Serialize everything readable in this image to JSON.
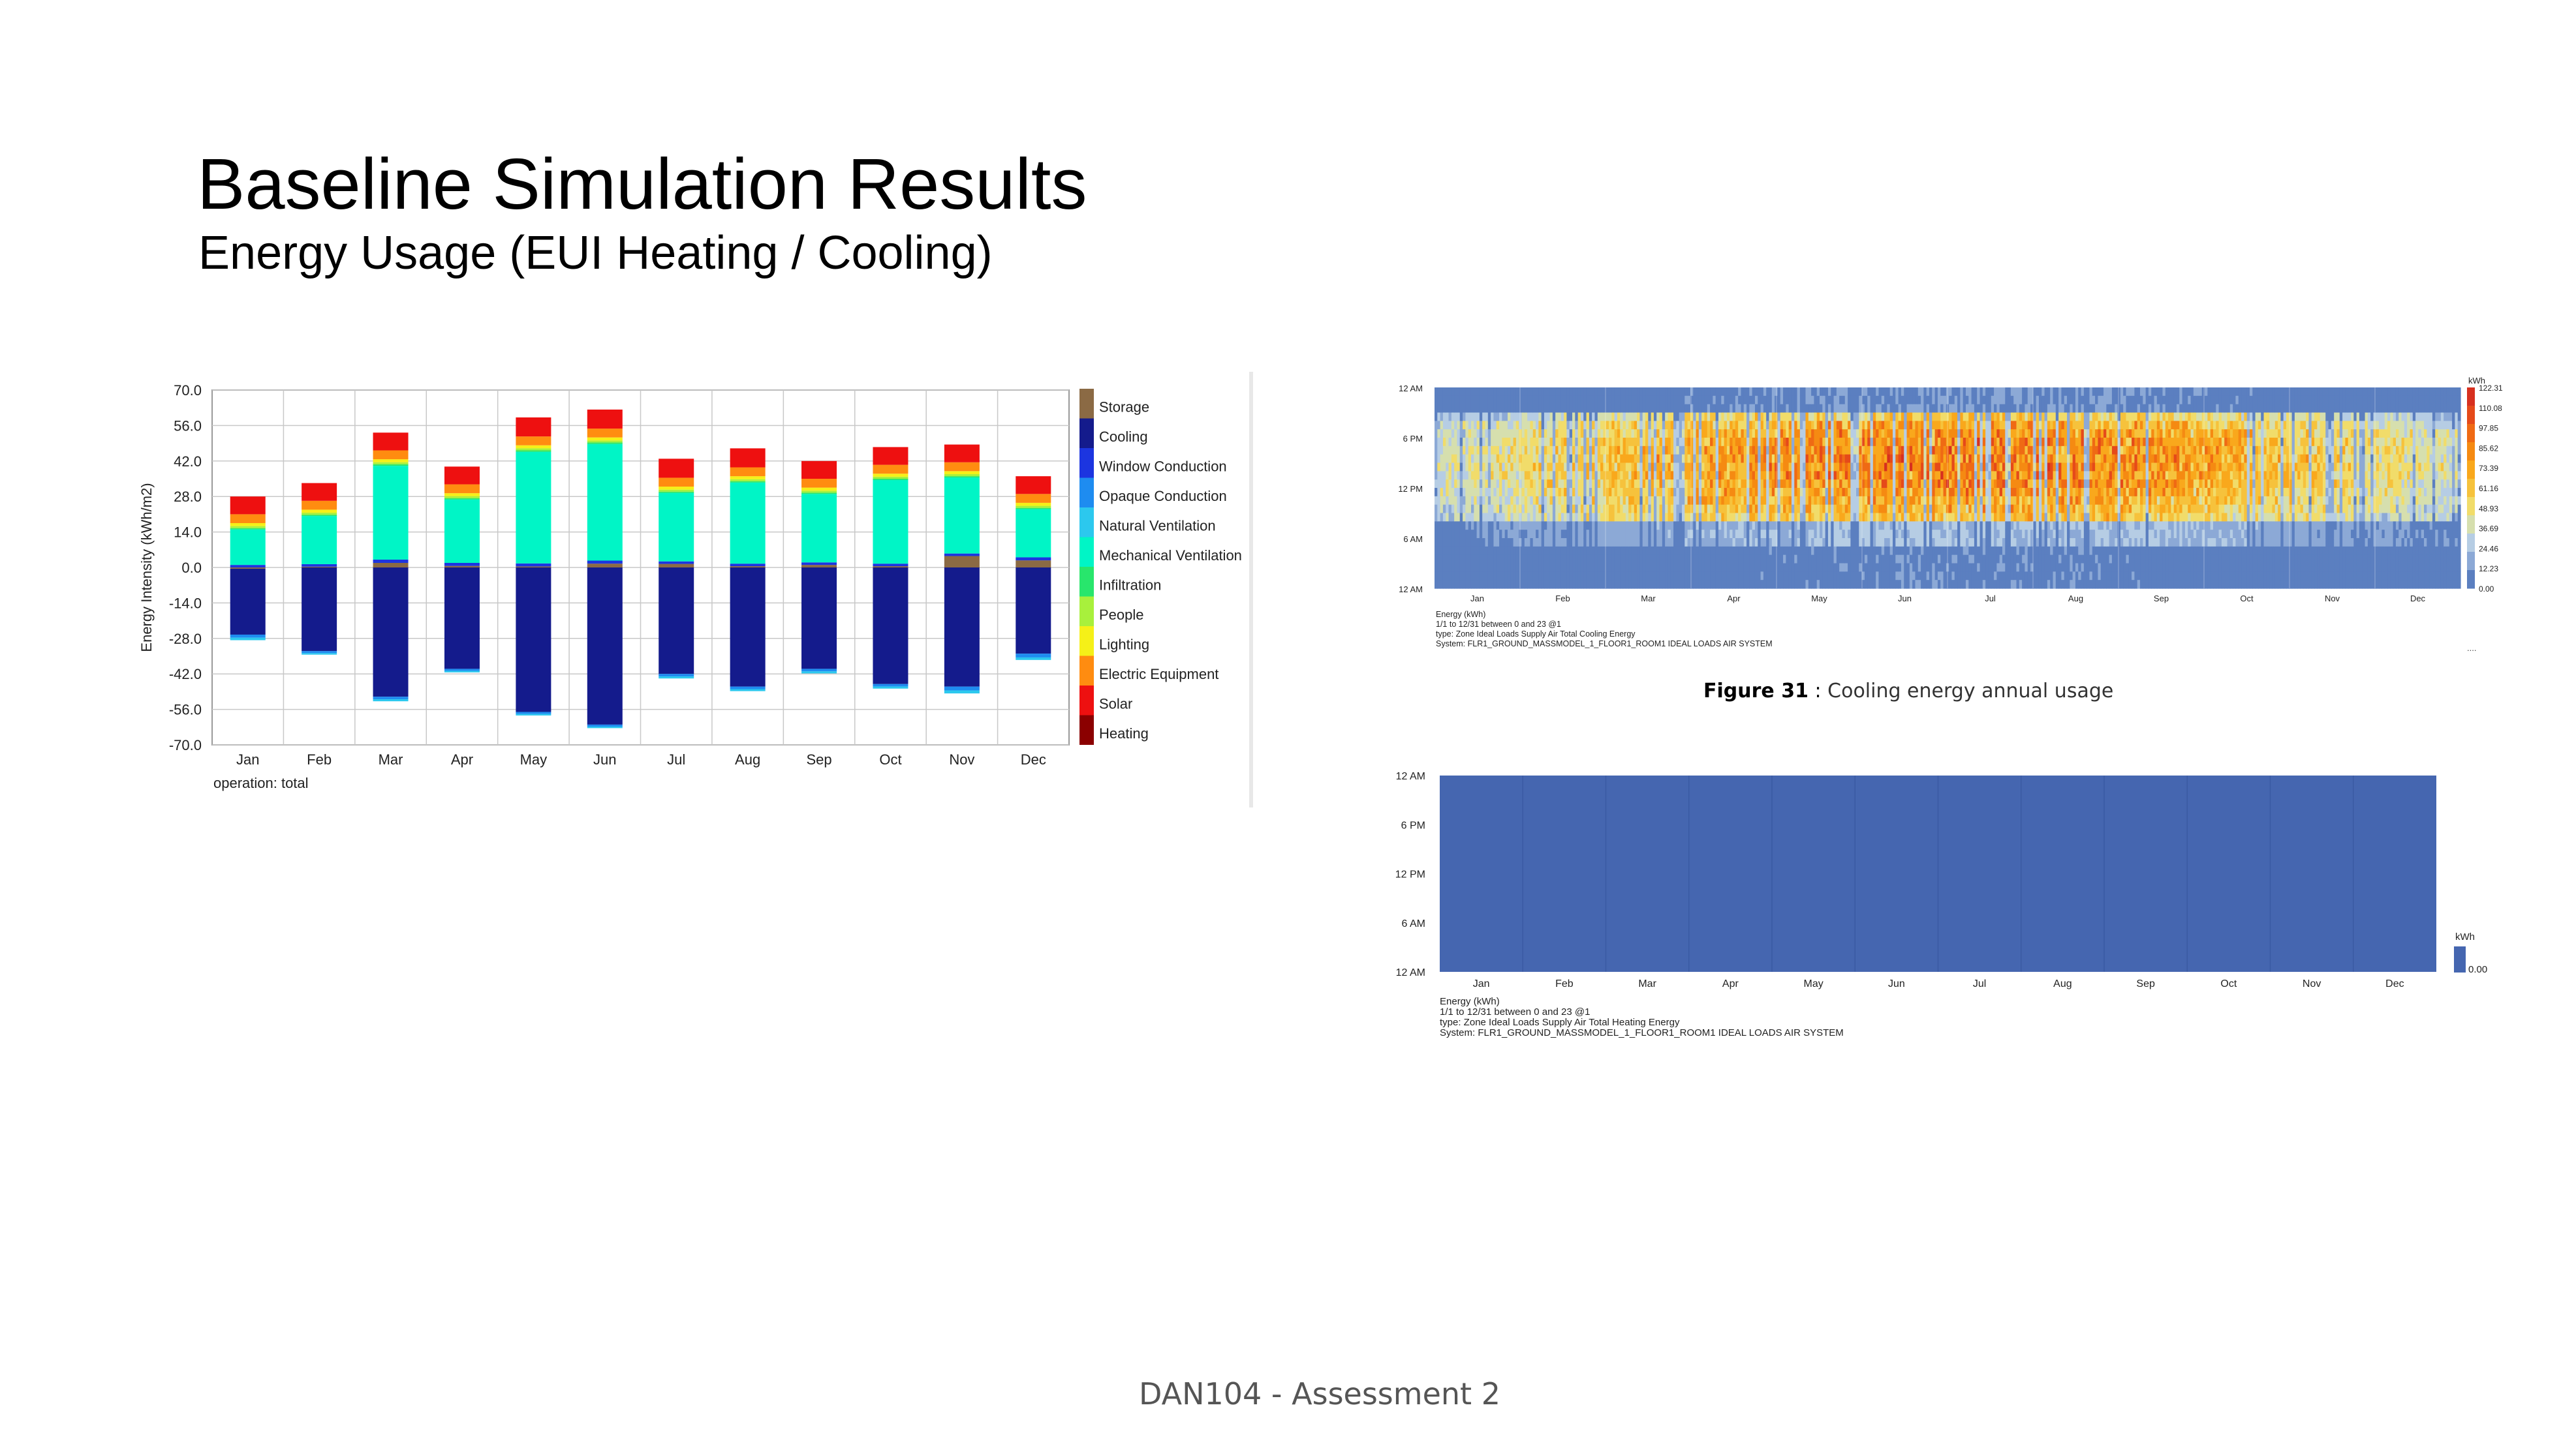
{
  "slide": {
    "title": "Baseline Simulation Results",
    "subtitle": "Energy Usage (EUI Heating / Cooling)",
    "footer": "DAN104 - Assessment 2"
  },
  "figure_caption": {
    "label": "Figure 31",
    "separator": " : ",
    "text": "Cooling energy annual usage"
  },
  "chart_data": [
    {
      "type": "bar",
      "stacked": true,
      "title": "",
      "xlabel": "",
      "ylabel": "Energy Intensity (kWh/m2)",
      "ylim": [
        -70,
        70
      ],
      "yticks": [
        "70.0",
        "56.0",
        "42.0",
        "28.0",
        "14.0",
        "0.0",
        "-14.0",
        "-28.0",
        "-42.0",
        "-56.0",
        "-70.0"
      ],
      "grid": true,
      "legend_position": "right",
      "footnote": "operation: total",
      "categories": [
        "Jan",
        "Feb",
        "Mar",
        "Apr",
        "May",
        "Jun",
        "Jul",
        "Aug",
        "Sep",
        "Oct",
        "Nov",
        "Dec"
      ],
      "series": [
        {
          "name": "Storage",
          "color": "#8b6a44",
          "values": [
            -0.5,
            0.3,
            1.8,
            0.6,
            0.4,
            1.5,
            1.4,
            0.5,
            1.0,
            0.5,
            4.5,
            2.8
          ]
        },
        {
          "name": "Cooling",
          "color": "#141b8c",
          "values": [
            -26,
            -33,
            -51,
            -40,
            -57,
            -62,
            -42,
            -47,
            -40,
            -46,
            -47,
            -34
          ]
        },
        {
          "name": "Window Conduction",
          "color": "#1c35e0",
          "values": [
            1.0,
            1.0,
            1.3,
            1.2,
            1.2,
            1.2,
            1.0,
            1.0,
            1.0,
            1.0,
            1.0,
            1.2
          ]
        },
        {
          "name": "Opaque Conduction",
          "color": "#1e8cf0",
          "values": [
            -1.2,
            -0.8,
            -1.0,
            -0.8,
            -0.8,
            -0.8,
            -1.0,
            -1.0,
            -1.0,
            -1.0,
            -1.5,
            -1.5
          ]
        },
        {
          "name": "Natural Ventilation",
          "color": "#2cc8ee",
          "values": [
            -1.0,
            -0.6,
            -0.8,
            -0.6,
            -0.6,
            -0.6,
            -0.8,
            -0.8,
            -0.8,
            -0.8,
            -1.2,
            -1.0
          ]
        },
        {
          "name": "Mechanical Ventilation",
          "color": "#00f5c6",
          "values": [
            14,
            19,
            37,
            25,
            44,
            46,
            27,
            32,
            27,
            33,
            30,
            19
          ]
        },
        {
          "name": "Infiltration",
          "color": "#28e66c",
          "values": [
            0.5,
            0.5,
            0.6,
            0.5,
            0.6,
            0.6,
            0.5,
            0.5,
            0.5,
            0.5,
            0.5,
            0.5
          ]
        },
        {
          "name": "People",
          "color": "#a8f03c",
          "values": [
            0.8,
            0.8,
            0.8,
            0.8,
            0.8,
            0.8,
            0.8,
            0.8,
            0.8,
            0.8,
            0.8,
            0.8
          ]
        },
        {
          "name": "Lighting",
          "color": "#f5f018",
          "values": [
            1.2,
            1.2,
            1.2,
            1.2,
            1.2,
            1.2,
            1.2,
            1.2,
            1.2,
            1.2,
            1.2,
            1.2
          ]
        },
        {
          "name": "Electric Equipment",
          "color": "#ff8c10",
          "values": [
            3.5,
            3.5,
            3.5,
            3.5,
            3.5,
            3.5,
            3.5,
            3.5,
            3.5,
            3.5,
            3.5,
            3.5
          ]
        },
        {
          "name": "Solar",
          "color": "#ee1010",
          "values": [
            7,
            7,
            7,
            7,
            7.5,
            7.5,
            7.5,
            7.5,
            7,
            7,
            7,
            7
          ]
        },
        {
          "name": "Heating",
          "color": "#8b0000",
          "values": [
            0,
            0,
            0,
            0,
            0,
            0,
            0,
            0,
            0,
            0,
            0,
            0
          ]
        }
      ]
    },
    {
      "type": "heatmap",
      "title": "",
      "yticks": [
        "12 AM",
        "6 PM",
        "12 PM",
        "6 AM",
        "12 AM"
      ],
      "xticks": [
        "Jan",
        "Feb",
        "Mar",
        "Apr",
        "May",
        "Jun",
        "Jul",
        "Aug",
        "Sep",
        "Oct",
        "Nov",
        "Dec"
      ],
      "colorbar_unit": "kWh",
      "colorbar_ticks": [
        "122.31",
        "110.08",
        "97.85",
        "85.62",
        "73.39",
        "61.16",
        "48.93",
        "36.69",
        "24.46",
        "12.23",
        "0.00"
      ],
      "colorbar_colors": [
        "#d7301f",
        "#e54a1a",
        "#ef6a14",
        "#f58a12",
        "#f9a81c",
        "#f6c23c",
        "#f1dc6a",
        "#d6dfae",
        "#b6cde4",
        "#8ca9d6",
        "#5b7fc0"
      ],
      "notes": [
        "Energy (kWh)",
        "1/1 to 12/31 between 0 and 23 @1",
        "type: Zone Ideal Loads Supply Air Total Cooling Energy",
        "System: FLR1_GROUND_MASSMODEL_1_FLOOR1_ROOM1 IDEAL LOADS AIR SYSTEM"
      ],
      "corner_mark": "...."
    },
    {
      "type": "heatmap",
      "title": "",
      "yticks": [
        "12 AM",
        "6 PM",
        "12 PM",
        "6 AM",
        "12 AM"
      ],
      "xticks": [
        "Jan",
        "Feb",
        "Mar",
        "Apr",
        "May",
        "Jun",
        "Jul",
        "Aug",
        "Sep",
        "Oct",
        "Nov",
        "Dec"
      ],
      "colorbar_unit": "kWh",
      "colorbar_ticks": [
        "0.00"
      ],
      "fill_color": "#4566b0",
      "notes": [
        "Energy (kWh)",
        "1/1 to 12/31 between 0 and 23 @1",
        "type: Zone Ideal Loads Supply Air Total Heating Energy",
        "System: FLR1_GROUND_MASSMODEL_1_FLOOR1_ROOM1 IDEAL LOADS AIR SYSTEM"
      ]
    }
  ]
}
